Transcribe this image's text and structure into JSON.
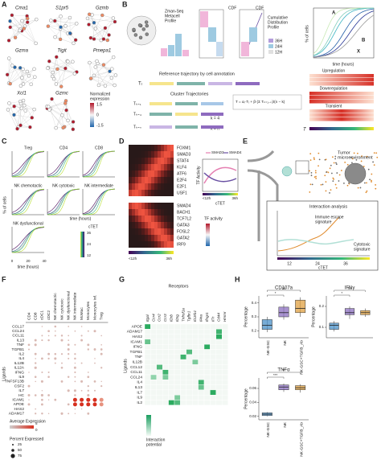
{
  "A": {
    "label": "A",
    "genes": [
      "Cma1",
      "S1pr5",
      "Gzmb",
      "Gzma",
      "Tigit",
      "Pmepa1",
      "Xcl1",
      "Gzmc"
    ],
    "legend_title": [
      "Normalized",
      "expression"
    ],
    "legend_ticks": [
      "1.5",
      "0",
      "-1.5"
    ]
  },
  "B": {
    "label": "B",
    "profile": [
      "Zman-Seq",
      "Metacell",
      "Profile"
    ],
    "cdf": "CDF",
    "cumulative": [
      "Cumulative",
      "Distribution",
      "Profile"
    ],
    "times": [
      "36H",
      "24H",
      "12H"
    ],
    "ylabel": "% of cells",
    "xlabel": "time (hours)",
    "markers": [
      "A",
      "B",
      "X"
    ],
    "reference": "Reference trajectory by cell annotation",
    "tr": "Tᵣ",
    "cluster": "Cluster Trajectories",
    "k4": "k = 4",
    "kn": "k = n",
    "tk": [
      "Tₖ₌₁",
      "Tₖ₌₄",
      "Tₖ₌ₙ"
    ],
    "formula": "T = αᵣ·Tᵣ + β·(Σ Tₖ₌₁..ₙ)/(n − k)",
    "patterns": [
      "Upregulation",
      "Downregulation",
      "Transient"
    ],
    "t": "T"
  },
  "C": {
    "label": "C",
    "panels": [
      "Treg",
      "CD4",
      "CD8",
      "NK chemotactic",
      "NK cytotoxic",
      "NK intermediate",
      "NK dysfunctional"
    ],
    "ylabel": "% of cells",
    "xlabel": "time (hours)",
    "xticks": [
      "0",
      "20",
      "40"
    ],
    "legend": "cTET",
    "legend_ticks": [
      "12",
      "24",
      "36"
    ]
  },
  "D": {
    "label": "D",
    "genes_top": [
      "FOXM1",
      "SMAD3",
      "STAT4",
      "KLF4",
      "ATF6",
      "E2F4",
      "E2F1",
      "USF1"
    ],
    "genes_bottom": [
      "SMAD4",
      "BACH1",
      "TCF7L2",
      "GATA3",
      "FOSL2",
      "GATA2",
      "IRF9"
    ],
    "lines": [
      "SMAD3",
      "SMAD4"
    ],
    "ylabel": "TF Activity",
    "xlabel": "cTET",
    "xticks": [
      "<12h",
      "36h"
    ],
    "legend": "TF activity"
  },
  "E": {
    "label": "E",
    "tme": [
      "Tumor",
      "microenvironment"
    ],
    "interaction": "Interaction analysis",
    "escape": [
      "Immune escape",
      "signature"
    ],
    "cytotoxic": [
      "Cytotoxic",
      "signature"
    ],
    "xticks": [
      "12",
      "24",
      "36"
    ],
    "xlabel": "cTET"
  },
  "F": {
    "label": "F",
    "columns": [
      "CD4",
      "CD8",
      "cDC1",
      "cDC2",
      "NK chemotactic",
      "NK cytotoxic",
      "NK dysfunctional",
      "NK intermediate",
      "MoMac",
      "Monocytes",
      "Monocytes Inf.",
      "Treg"
    ],
    "rows": [
      "CCL17",
      "CCL24",
      "CCL11",
      "IL13",
      "TNF",
      "TGFB1",
      "IL2",
      "IL4",
      "IL12B",
      "IL12A",
      "IFNG",
      "IL9",
      "TNFSF13B",
      "CSF2",
      "IL7",
      "HC",
      "ICAM1",
      "APOE",
      "HAS2",
      "ADAM17"
    ],
    "ylabel": "Ligands",
    "avg_title": "Average Expression",
    "avg_ticks": [
      "5",
      "0"
    ],
    "pct_title": "Percent Expressed",
    "pct_ticks": [
      "25",
      "50",
      "75"
    ]
  },
  "G": {
    "label": "G",
    "title": "Receptors",
    "columns": [
      "Itgal",
      "Ccr4",
      "Ccr2",
      "Ccr3",
      "Il2rb",
      "Il2rg",
      "Tnfrsf1a",
      "Tgfbr1",
      "Il12rb1",
      "Il4ra",
      "Ifngr1",
      "Il7r",
      "Cd44",
      "Hmmr"
    ],
    "rows": [
      "APOE",
      "ADAM17",
      "HAS2",
      "ICAM1",
      "IFNG",
      "TGFB1",
      "TNF",
      "IL12B",
      "CCL12",
      "CCL11",
      "CCL24",
      "IL4",
      "IL13",
      "IL7",
      "IL9",
      "IL2"
    ],
    "ylabel": "Ligands",
    "legend": [
      "Interaction",
      "potential"
    ]
  },
  "H": {
    "label": "H",
    "ylabel": "Percentage",
    "groups": [
      "NK-GSC",
      "NK",
      "NK-GSC+TGFB_Ab"
    ],
    "plots": [
      {
        "title": "CD107a",
        "ylim": [
          0.15,
          0.45
        ],
        "yticks": [
          0.2,
          0.3,
          0.4
        ],
        "boxes": [
          [
            0.19,
            0.21,
            0.24,
            0.28,
            0.3
          ],
          [
            0.28,
            0.3,
            0.33,
            0.37,
            0.39
          ],
          [
            0.3,
            0.33,
            0.36,
            0.42,
            0.44
          ]
        ],
        "sig": [
          "*",
          "ns"
        ]
      },
      {
        "title": "IFNγ",
        "ylim": [
          0.05,
          0.25
        ],
        "yticks": [
          0.1,
          0.2
        ],
        "boxes": [
          [
            0.08,
            0.09,
            0.11,
            0.12,
            0.13
          ],
          [
            0.14,
            0.16,
            0.17,
            0.19,
            0.2
          ],
          [
            0.15,
            0.16,
            0.17,
            0.18,
            0.19
          ]
        ],
        "sig": [
          "*",
          "ns"
        ]
      },
      {
        "title": "TNFα",
        "ylim": [
          0.015,
          0.075
        ],
        "yticks": [
          0.02,
          0.04,
          0.06
        ],
        "boxes": [
          [
            0.02,
            0.021,
            0.023,
            0.025,
            0.026
          ],
          [
            0.055,
            0.058,
            0.062,
            0.065,
            0.067
          ],
          [
            0.054,
            0.058,
            0.061,
            0.064,
            0.066
          ]
        ],
        "sig": [
          "***",
          "**"
        ]
      }
    ]
  }
}
